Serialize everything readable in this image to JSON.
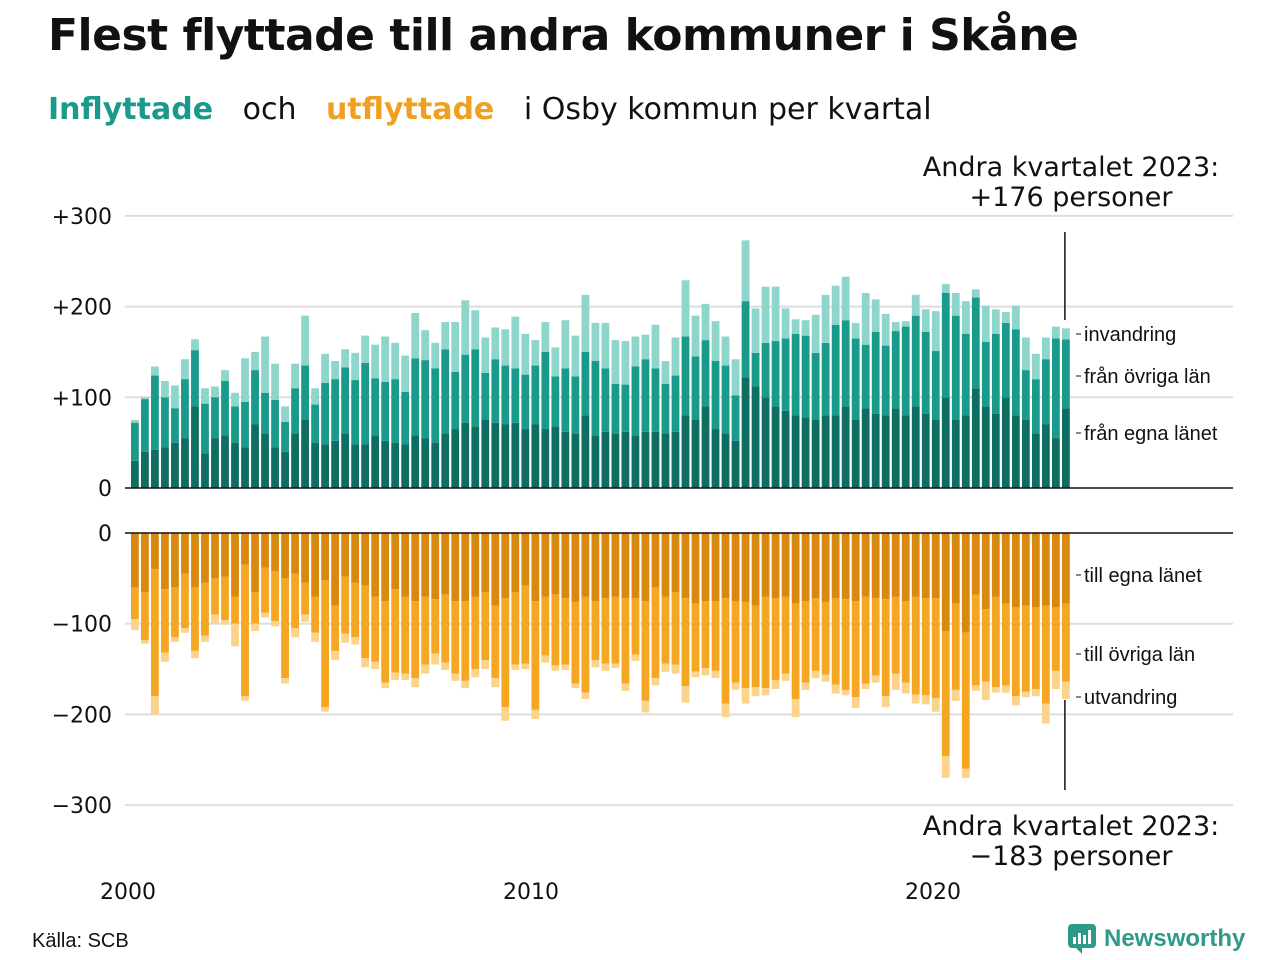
{
  "title": "Flest flyttade till andra kommuner i Skåne",
  "subtitle": {
    "part1": "Inflyttade",
    "part2": "och",
    "part3": "utflyttade",
    "part4": "i Osby kommun per kvartal"
  },
  "source": "Källa: SCB",
  "brand": "Newsworthy",
  "colors": {
    "in_own": "#0f6e62",
    "in_other": "#1a9a8a",
    "in_imm": "#8ed6cc",
    "out_own": "#d98810",
    "out_other": "#f5a623",
    "out_emi": "#fbd38a",
    "grid": "#dddddd",
    "brand": "#2e9a8a"
  },
  "chart_data": {
    "type": "bar",
    "stacked": true,
    "x_axis": {
      "ticks": [
        "2000",
        "2010",
        "2020"
      ],
      "start_year": 2000,
      "periods": 94
    },
    "top_panel": {
      "y_ticks": [
        "+300",
        "+200",
        "+100",
        "0"
      ],
      "ylim": [
        0,
        300
      ],
      "annotation": [
        "Andra kvartalet 2023:",
        "+176 personer"
      ],
      "series": [
        {
          "name": "från egna länet",
          "values": [
            30,
            40,
            42,
            45,
            50,
            55,
            90,
            38,
            55,
            58,
            50,
            45,
            70,
            60,
            45,
            40,
            60,
            75,
            50,
            48,
            52,
            60,
            48,
            48,
            58,
            52,
            50,
            48,
            58,
            55,
            50,
            60,
            65,
            72,
            68,
            75,
            72,
            70,
            72,
            65,
            70,
            65,
            68,
            62,
            60,
            80,
            58,
            62,
            60,
            62,
            58,
            62,
            62,
            60,
            62,
            80,
            75,
            90,
            65,
            60,
            52,
            122,
            112,
            100,
            90,
            85,
            80,
            78,
            75,
            80,
            80,
            90,
            75,
            88,
            82,
            80,
            88,
            80,
            90,
            82,
            75,
            100,
            75,
            80,
            110,
            90,
            82,
            100,
            80,
            75,
            60,
            70,
            55,
            88
          ]
        },
        {
          "name": "från övriga län",
          "values": [
            42,
            58,
            82,
            55,
            38,
            65,
            62,
            55,
            45,
            60,
            40,
            50,
            60,
            45,
            52,
            33,
            50,
            60,
            42,
            68,
            68,
            73,
            71,
            90,
            63,
            65,
            70,
            58,
            85,
            86,
            82,
            93,
            63,
            75,
            85,
            52,
            70,
            65,
            60,
            60,
            65,
            85,
            55,
            70,
            63,
            70,
            82,
            70,
            55,
            52,
            76,
            80,
            70,
            55,
            62,
            87,
            70,
            73,
            75,
            75,
            50,
            84,
            37,
            60,
            72,
            80,
            90,
            90,
            74,
            80,
            100,
            95,
            90,
            70,
            90,
            77,
            85,
            98,
            100,
            90,
            76,
            115,
            115,
            90,
            100,
            71,
            88,
            82,
            95,
            55,
            60,
            72,
            110,
            76
          ]
        },
        {
          "name": "invandring",
          "values": [
            3,
            2,
            10,
            18,
            25,
            22,
            12,
            17,
            12,
            12,
            15,
            48,
            20,
            62,
            40,
            17,
            27,
            55,
            18,
            32,
            20,
            20,
            30,
            30,
            37,
            50,
            40,
            40,
            50,
            33,
            28,
            30,
            55,
            60,
            43,
            39,
            35,
            40,
            57,
            45,
            28,
            33,
            32,
            53,
            45,
            63,
            42,
            50,
            48,
            48,
            33,
            27,
            48,
            25,
            42,
            62,
            45,
            40,
            44,
            32,
            40,
            67,
            49,
            62,
            60,
            33,
            16,
            17,
            42,
            53,
            43,
            48,
            17,
            57,
            36,
            35,
            10,
            6,
            23,
            25,
            44,
            10,
            25,
            36,
            9,
            40,
            27,
            12,
            26,
            36,
            28,
            24,
            13,
            12
          ]
        }
      ]
    },
    "bottom_panel": {
      "y_ticks": [
        "0",
        "−100",
        "−200",
        "−300"
      ],
      "ylim": [
        -300,
        0
      ],
      "annotation": [
        "Andra kvartalet 2023:",
        "−183 personer"
      ],
      "series": [
        {
          "name": "till egna länet",
          "values": [
            -60,
            -65,
            -40,
            -62,
            -60,
            -45,
            -60,
            -55,
            -50,
            -48,
            -70,
            -35,
            -65,
            -38,
            -42,
            -50,
            -45,
            -55,
            -70,
            -52,
            -80,
            -48,
            -55,
            -58,
            -70,
            -75,
            -62,
            -70,
            -75,
            -70,
            -73,
            -68,
            -75,
            -75,
            -70,
            -65,
            -80,
            -72,
            -65,
            -58,
            -75,
            -70,
            -68,
            -72,
            -76,
            -70,
            -75,
            -72,
            -70,
            -72,
            -72,
            -75,
            -60,
            -70,
            -65,
            -72,
            -78,
            -75,
            -75,
            -72,
            -75,
            -76,
            -80,
            -70,
            -72,
            -70,
            -78,
            -75,
            -72,
            -76,
            -72,
            -73,
            -75,
            -70,
            -72,
            -73,
            -70,
            -75,
            -70,
            -72,
            -72,
            -108,
            -78,
            -110,
            -68,
            -84,
            -70,
            -78,
            -82,
            -80,
            -82,
            -80,
            -82,
            -78
          ]
        },
        {
          "name": "till övriga län",
          "values": [
            -35,
            -53,
            -140,
            -70,
            -55,
            -60,
            -70,
            -58,
            -40,
            -48,
            -30,
            -145,
            -35,
            -50,
            -55,
            -110,
            -60,
            -35,
            -40,
            -140,
            -50,
            -63,
            -60,
            -80,
            -72,
            -90,
            -92,
            -85,
            -85,
            -75,
            -60,
            -75,
            -80,
            -88,
            -80,
            -75,
            -80,
            -120,
            -80,
            -86,
            -120,
            -65,
            -78,
            -73,
            -90,
            -106,
            -65,
            -72,
            -74,
            -94,
            -62,
            -110,
            -100,
            -74,
            -80,
            -97,
            -75,
            -74,
            -77,
            -116,
            -90,
            -95,
            -90,
            -101,
            -90,
            -85,
            -105,
            -90,
            -80,
            -80,
            -95,
            -100,
            -106,
            -96,
            -85,
            -107,
            -85,
            -90,
            -108,
            -107,
            -110,
            -138,
            -95,
            -150,
            -100,
            -80,
            -100,
            -90,
            -98,
            -95,
            -90,
            -108,
            -70,
            -86
          ]
        },
        {
          "name": "utvandring",
          "values": [
            -12,
            -4,
            -20,
            -10,
            -5,
            -5,
            -8,
            -7,
            -10,
            -5,
            -25,
            -5,
            -8,
            -5,
            -6,
            -6,
            -10,
            -8,
            -10,
            -5,
            -10,
            -10,
            -8,
            -10,
            -8,
            -6,
            -8,
            -7,
            -10,
            -10,
            -12,
            -8,
            -8,
            -8,
            -9,
            -10,
            -10,
            -15,
            -6,
            -6,
            -10,
            -8,
            -6,
            -6,
            -5,
            -7,
            -8,
            -8,
            -5,
            -8,
            -7,
            -13,
            -8,
            -9,
            -10,
            -18,
            -6,
            -8,
            -8,
            -15,
            -8,
            -17,
            -10,
            -8,
            -10,
            -8,
            -20,
            -8,
            -8,
            -8,
            -10,
            -6,
            -12,
            -6,
            -8,
            -12,
            -18,
            -12,
            -10,
            -10,
            -15,
            -24,
            -12,
            -10,
            -6,
            -20,
            -6,
            -8,
            -10,
            -6,
            -8,
            -22,
            -20,
            -19
          ]
        }
      ]
    },
    "grid": true,
    "legend": "right-side inline labels"
  }
}
